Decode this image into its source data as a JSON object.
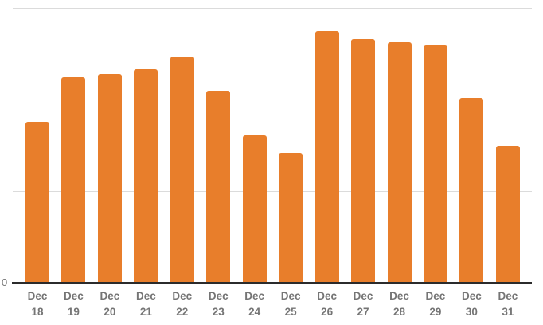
{
  "chart_data": {
    "type": "bar",
    "title": "",
    "xlabel": "",
    "ylabel": "",
    "categories": [
      "Dec 18",
      "Dec 19",
      "Dec 20",
      "Dec 21",
      "Dec 22",
      "Dec 23",
      "Dec 24",
      "Dec 25",
      "Dec 26",
      "Dec 27",
      "Dec 28",
      "Dec 29",
      "Dec 30",
      "Dec 31"
    ],
    "values": [
      1.76,
      2.24,
      2.28,
      2.33,
      2.47,
      2.1,
      1.61,
      1.42,
      2.75,
      2.66,
      2.63,
      2.59,
      2.02,
      1.5
    ],
    "values_note": "y-axis unlabeled except 0; values estimated in gridline units",
    "ylim": [
      0,
      3
    ],
    "gridline_values": [
      0,
      1,
      2,
      3
    ],
    "y_axis_zero_label": "0",
    "grid": true,
    "legend": "none"
  },
  "colors": {
    "bar": "#e87e2b",
    "gridline": "#dbdbdb",
    "axis_line": "#2b2b2b",
    "tick_label": "#757575",
    "background": "#ffffff"
  }
}
